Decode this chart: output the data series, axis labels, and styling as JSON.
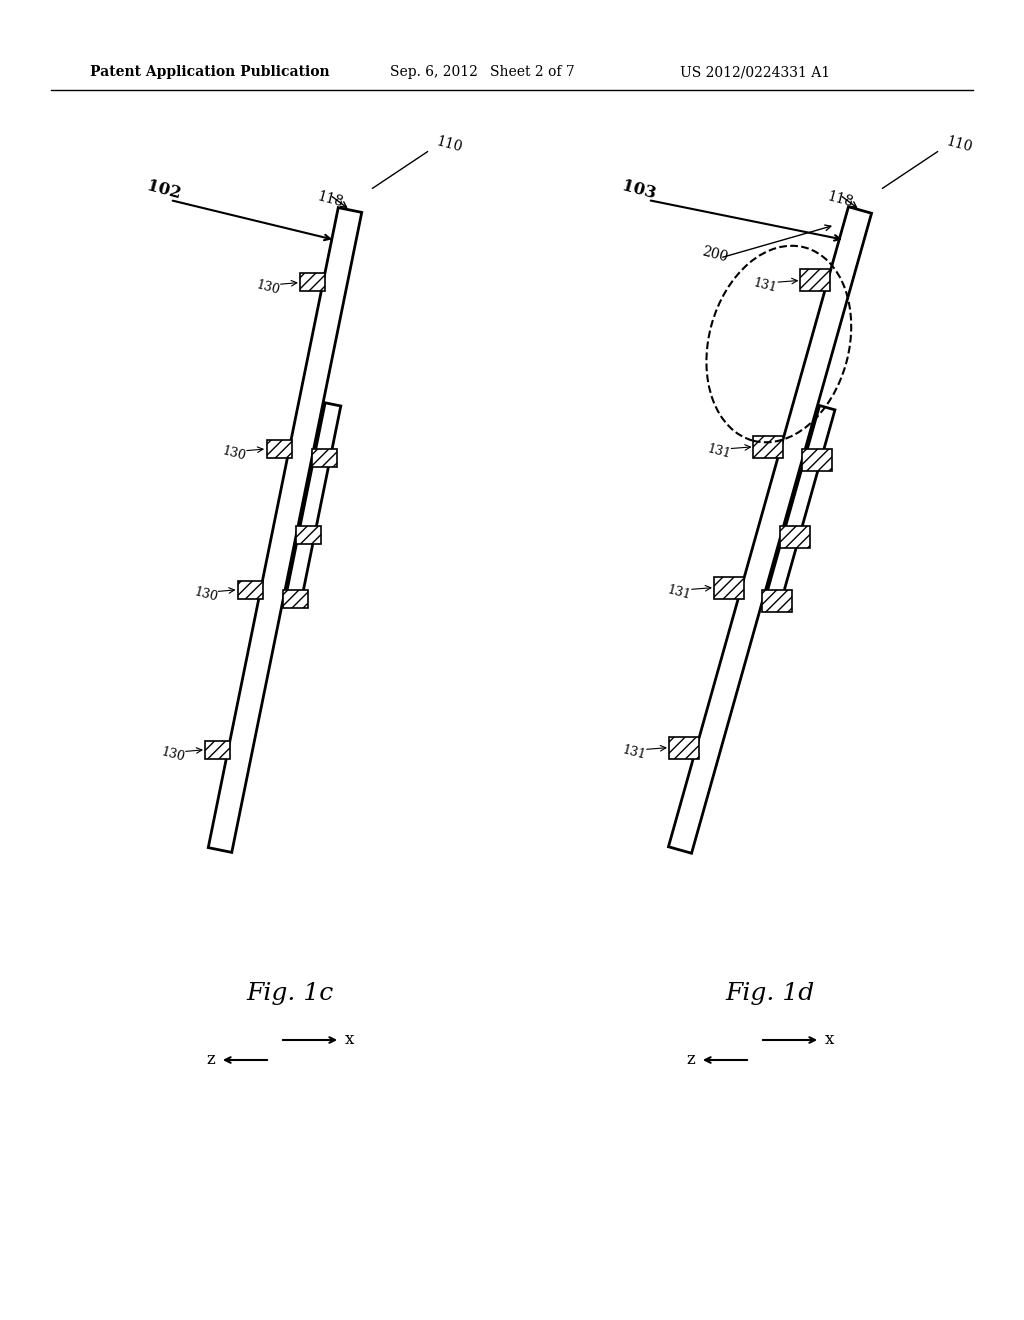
{
  "bg_color": "#ffffff",
  "header_text": "Patent Application Publication",
  "header_date": "Sep. 6, 2012",
  "header_sheet": "Sheet 2 of 7",
  "header_patent": "US 2012/0224331 A1",
  "fig1c_label": "Fig. 1c",
  "fig1d_label": "Fig. 1d",
  "label_102": "102",
  "label_103": "103",
  "label_110": "110",
  "label_118": "118",
  "label_130": "130",
  "label_131": "131",
  "label_200": "200"
}
